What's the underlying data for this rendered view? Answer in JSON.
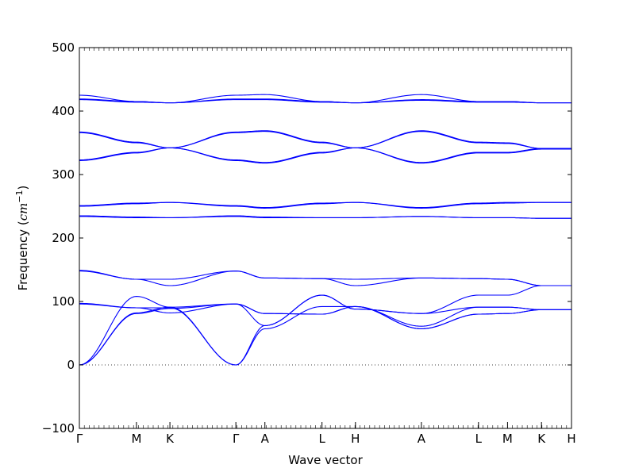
{
  "chart_data": {
    "type": "line",
    "xlabel": "Wave vector",
    "ylabel": "Frequency",
    "ylabel_unit": "cm",
    "ylabel_exponent": "−1",
    "ylim": [
      -100,
      500
    ],
    "yticks": [
      -100,
      0,
      100,
      200,
      300,
      400,
      500
    ],
    "xlim": [
      0,
      1
    ],
    "path_points": [
      {
        "label": "Γ",
        "x": 0.0
      },
      {
        "label": "M",
        "x": 0.116
      },
      {
        "label": "K",
        "x": 0.184
      },
      {
        "label": "Γ",
        "x": 0.318
      },
      {
        "label": "A",
        "x": 0.377
      },
      {
        "label": "L",
        "x": 0.493
      },
      {
        "label": "H",
        "x": 0.561
      },
      {
        "label": "A",
        "x": 0.695
      },
      {
        "label": "L",
        "x": 0.811
      },
      {
        "label": "M",
        "x": 0.87
      },
      {
        "label": "K",
        "x": 0.939
      },
      {
        "label": "H",
        "x": 1.0
      }
    ],
    "zero_line": 0,
    "line_color": "#0000ff",
    "series": [
      {
        "values": [
          0,
          81,
          89,
          96,
          81,
          80,
          92,
          57,
          80,
          81,
          87,
          87
        ]
      },
      {
        "values": [
          0,
          82,
          91,
          96,
          81,
          80,
          92,
          57,
          80,
          81,
          87,
          87
        ]
      },
      {
        "values": [
          0,
          108,
          91,
          0,
          57,
          92,
          92,
          61,
          91,
          91,
          87,
          87
        ]
      },
      {
        "values": [
          96,
          90,
          90,
          0,
          62,
          110,
          88,
          81,
          91,
          91,
          87,
          87
        ]
      },
      {
        "values": [
          97,
          90,
          82,
          96,
          62,
          110,
          88,
          81,
          110,
          110,
          125,
          125
        ]
      },
      {
        "values": [
          148,
          135,
          125,
          148,
          137,
          136,
          125,
          137,
          136,
          135,
          125,
          125
        ]
      },
      {
        "values": [
          149,
          135,
          135,
          148,
          137,
          136,
          135,
          137,
          136,
          135,
          125,
          125
        ]
      },
      {
        "values": [
          234,
          232,
          232,
          234,
          232,
          232,
          232,
          234,
          232,
          232,
          231,
          231
        ]
      },
      {
        "values": [
          235,
          233,
          232,
          235,
          233,
          232,
          232,
          234,
          232,
          232,
          231,
          231
        ]
      },
      {
        "values": [
          250,
          254,
          256,
          250,
          247,
          254,
          256,
          247,
          254,
          255,
          256,
          256
        ]
      },
      {
        "values": [
          251,
          255,
          256,
          251,
          248,
          255,
          256,
          248,
          255,
          256,
          256,
          256
        ]
      },
      {
        "values": [
          322,
          334,
          342,
          322,
          318,
          334,
          342,
          318,
          334,
          334,
          340,
          340
        ]
      },
      {
        "values": [
          323,
          335,
          342,
          323,
          319,
          335,
          342,
          319,
          335,
          335,
          341,
          341
        ]
      },
      {
        "values": [
          366,
          350,
          342,
          366,
          368,
          350,
          342,
          368,
          350,
          349,
          341,
          341
        ]
      },
      {
        "values": [
          367,
          351,
          342,
          367,
          369,
          351,
          342,
          369,
          351,
          350,
          341,
          341
        ]
      },
      {
        "values": [
          418,
          414,
          413,
          418,
          418,
          414,
          413,
          417,
          414,
          414,
          413,
          413
        ]
      },
      {
        "values": [
          419,
          415,
          413,
          419,
          419,
          415,
          413,
          418,
          415,
          415,
          413,
          413
        ]
      },
      {
        "values": [
          425,
          415,
          413,
          425,
          426,
          415,
          413,
          426,
          415,
          415,
          413,
          413
        ]
      }
    ]
  }
}
